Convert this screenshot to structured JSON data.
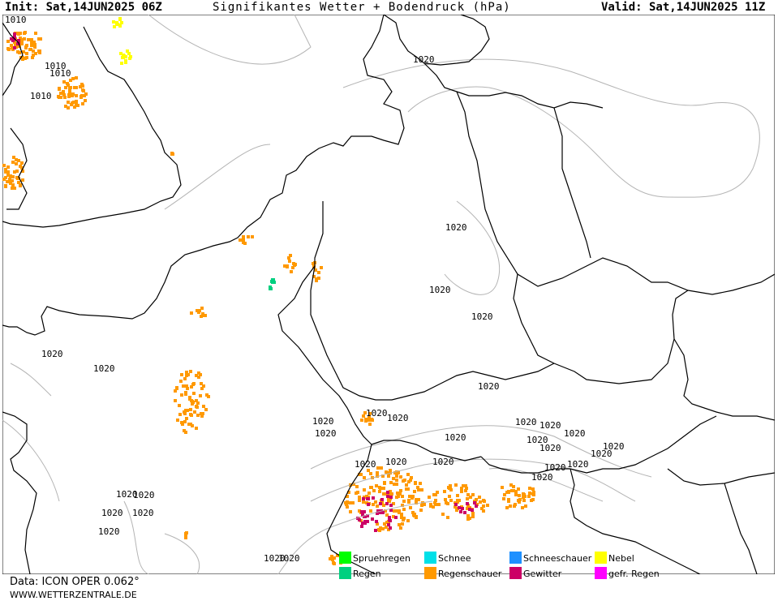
{
  "header": {
    "init": "Init: Sat,14JUN2025 06Z",
    "title": "Signifikantes Wetter + Bodendruck (hPa)",
    "valid": "Valid: Sat,14JUN2025 11Z"
  },
  "isobar_labels": [
    "1010",
    "1010",
    "1010",
    "1010",
    "1020",
    "1020",
    "1020",
    "1020",
    "1020",
    "1020",
    "1020",
    "1020",
    "1020",
    "1020",
    "1020",
    "1020",
    "1020",
    "1020",
    "1020",
    "1020",
    "1020",
    "1020",
    "1020",
    "1020",
    "1020",
    "1020",
    "1020",
    "1020",
    "1020",
    "1020",
    "1020",
    "1020",
    "1020",
    "1020",
    "1020",
    "1020"
  ],
  "legend": [
    {
      "label": "Spruehregen",
      "color": "#00ff00"
    },
    {
      "label": "Schnee",
      "color": "#00e0e8"
    },
    {
      "label": "Schneeschauer",
      "color": "#1e90ff"
    },
    {
      "label": "Nebel",
      "color": "#ffff00"
    },
    {
      "label": "Regen",
      "color": "#00d080"
    },
    {
      "label": "Regenschauer",
      "color": "#ff9900"
    },
    {
      "label": "Gewitter",
      "color": "#cc0066"
    },
    {
      "label": "gefr. Regen",
      "color": "#ff00ff"
    }
  ],
  "footer": {
    "data": "Data: ICON OPER 0.062°",
    "site": "WWW.WETTERZENTRALE.DE"
  },
  "colors": {
    "rain_shower": "#ff9900",
    "thunder": "#cc0066",
    "fog": "#ffff00",
    "rain": "#00d080",
    "isobar": "#b4b4b4",
    "border": "#000000"
  }
}
